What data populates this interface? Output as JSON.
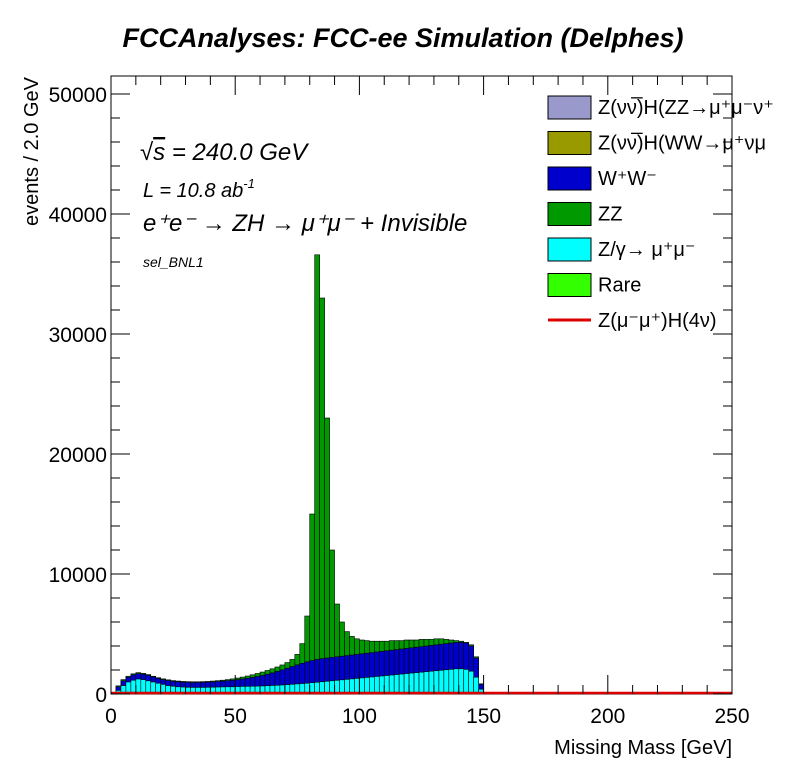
{
  "chart_data": {
    "type": "area",
    "title": "FCCAnalyses: FCC-ee Simulation (Delphes)",
    "xlabel": "Missing Mass [GeV]",
    "ylabel": "events / 2.0 GeV",
    "xlim": [
      0,
      250
    ],
    "ylim": [
      0,
      51500
    ],
    "x_ticks": [
      "0",
      "50",
      "100",
      "150",
      "200",
      "250"
    ],
    "y_ticks": [
      "0",
      "10000",
      "20000",
      "30000",
      "40000",
      "50000"
    ],
    "stacked": true,
    "bin_width": 2.0,
    "annotations": {
      "sqrt_s": "√s = 240.0 GeV",
      "sqrt_s_symbol": "√",
      "sqrt_s_var": "s",
      "sqrt_s_rest": " = 240.0 GeV",
      "lumi": "L = 10.8 ab",
      "lumi_exp": "-1",
      "process": "e⁺e⁻ → ZH → μ⁺μ⁻ + Invisible",
      "selection": "sel_BNL1"
    },
    "legend": [
      {
        "label": "Z(νν̅)H(ZZ→μ⁺μ⁻ν⁺",
        "color": "#9999cc",
        "style": "box"
      },
      {
        "label": "Z(νν̅)H(WW→μ⁺νμ",
        "color": "#999900",
        "style": "box"
      },
      {
        "label": "W⁺W⁻",
        "color": "#0000cc",
        "style": "box"
      },
      {
        "label": "ZZ",
        "color": "#009900",
        "style": "box"
      },
      {
        "label": "Z/γ→ μ⁺μ⁻",
        "color": "#00ffff",
        "style": "box"
      },
      {
        "label": "Rare",
        "color": "#33ff00",
        "style": "box"
      },
      {
        "label": "Z(μ⁻μ⁺)H(4ν)",
        "color": "#dd0000",
        "style": "line"
      }
    ],
    "x_bins_lower_edges": [
      0,
      2,
      4,
      6,
      8,
      10,
      12,
      14,
      16,
      18,
      20,
      22,
      24,
      26,
      28,
      30,
      32,
      34,
      36,
      38,
      40,
      42,
      44,
      46,
      48,
      50,
      52,
      54,
      56,
      58,
      60,
      62,
      64,
      66,
      68,
      70,
      72,
      74,
      76,
      78,
      80,
      82,
      84,
      86,
      88,
      90,
      92,
      94,
      96,
      98,
      100,
      102,
      104,
      106,
      108,
      110,
      112,
      114,
      116,
      118,
      120,
      122,
      124,
      126,
      128,
      130,
      132,
      134,
      136,
      138,
      140,
      142,
      144,
      146,
      148,
      150,
      152
    ],
    "series_stacked_totals": [
      {
        "name": "Z/γ→ μ⁺μ⁻",
        "values": [
          50,
          300,
          700,
          1000,
          1150,
          1250,
          1200,
          1100,
          1000,
          900,
          800,
          700,
          650,
          600,
          580,
          560,
          550,
          550,
          550,
          560,
          570,
          580,
          590,
          600,
          600,
          620,
          630,
          640,
          650,
          660,
          670,
          690,
          710,
          730,
          750,
          780,
          810,
          840,
          870,
          900,
          940,
          980,
          1020,
          1060,
          1100,
          1140,
          1180,
          1220,
          1260,
          1300,
          1340,
          1380,
          1420,
          1460,
          1500,
          1540,
          1580,
          1620,
          1660,
          1700,
          1740,
          1780,
          1820,
          1860,
          1900,
          1940,
          1980,
          2020,
          2060,
          2100,
          2100,
          2050,
          1900,
          1400,
          400,
          0,
          0
        ]
      },
      {
        "name": "W⁺W⁻",
        "values": [
          100,
          600,
          1100,
          1400,
          1600,
          1700,
          1650,
          1550,
          1420,
          1300,
          1200,
          1120,
          1060,
          1020,
          990,
          970,
          960,
          960,
          970,
          990,
          1010,
          1040,
          1070,
          1110,
          1150,
          1200,
          1250,
          1310,
          1380,
          1460,
          1550,
          1650,
          1760,
          1880,
          2010,
          2150,
          2290,
          2430,
          2560,
          2680,
          2790,
          2880,
          2950,
          3000,
          3050,
          3100,
          3150,
          3200,
          3250,
          3300,
          3350,
          3400,
          3450,
          3500,
          3550,
          3600,
          3650,
          3700,
          3750,
          3800,
          3850,
          3900,
          3950,
          4000,
          4050,
          4100,
          4150,
          4200,
          4250,
          4300,
          4300,
          4250,
          4000,
          3000,
          800,
          0,
          0
        ]
      },
      {
        "name": "ZZ",
        "values": [
          130,
          680,
          1200,
          1480,
          1680,
          1780,
          1720,
          1620,
          1480,
          1360,
          1260,
          1180,
          1120,
          1080,
          1050,
          1030,
          1020,
          1020,
          1030,
          1050,
          1080,
          1110,
          1150,
          1200,
          1260,
          1330,
          1410,
          1500,
          1600,
          1710,
          1830,
          1960,
          2100,
          2250,
          2420,
          2620,
          2880,
          3300,
          4200,
          6500,
          15000,
          36600,
          33000,
          23000,
          12000,
          7500,
          6000,
          5200,
          4800,
          4600,
          4500,
          4450,
          4400,
          4400,
          4400,
          4400,
          4450,
          4450,
          4450,
          4500,
          4500,
          4500,
          4550,
          4550,
          4550,
          4600,
          4600,
          4550,
          4500,
          4450,
          4400,
          4300,
          4100,
          3100,
          850,
          0,
          0
        ]
      },
      {
        "name": "Rare",
        "values": [
          0,
          0,
          0,
          0,
          0,
          0,
          0,
          0,
          0,
          0,
          0,
          0,
          0,
          0,
          0,
          0,
          0,
          0,
          0,
          0,
          0,
          0,
          0,
          0,
          0,
          0,
          0,
          0,
          0,
          0,
          0,
          0,
          0,
          0,
          0,
          0,
          0,
          0,
          0,
          0,
          0,
          0,
          0,
          0,
          0,
          0,
          0,
          0,
          0,
          0,
          0,
          0,
          0,
          0,
          0,
          0,
          0,
          0,
          0,
          0,
          0,
          0,
          0,
          0,
          0,
          0,
          0,
          0,
          0,
          0,
          0,
          0,
          0,
          0,
          0,
          0,
          0
        ]
      },
      {
        "name": "Z(νν̅)H(WW→μ⁺νμ",
        "values": [
          0,
          0,
          0,
          0,
          0,
          0,
          0,
          0,
          0,
          0,
          0,
          0,
          0,
          0,
          0,
          0,
          0,
          0,
          0,
          0,
          0,
          0,
          0,
          0,
          0,
          0,
          0,
          0,
          0,
          0,
          0,
          0,
          0,
          0,
          0,
          0,
          0,
          0,
          0,
          0,
          0,
          0,
          0,
          0,
          0,
          0,
          0,
          0,
          0,
          0,
          0,
          0,
          0,
          0,
          0,
          0,
          0,
          0,
          0,
          0,
          0,
          0,
          0,
          0,
          0,
          0,
          0,
          0,
          0,
          0,
          0,
          0,
          0,
          0,
          0,
          0,
          0
        ]
      },
      {
        "name": "Z(νν̅)H(ZZ→μ⁺μ⁻ν⁺",
        "values": [
          0,
          0,
          0,
          0,
          0,
          0,
          0,
          0,
          0,
          0,
          0,
          0,
          0,
          0,
          0,
          0,
          0,
          0,
          0,
          0,
          0,
          0,
          0,
          0,
          0,
          0,
          0,
          0,
          0,
          0,
          0,
          0,
          0,
          0,
          0,
          0,
          0,
          0,
          0,
          0,
          0,
          0,
          0,
          0,
          0,
          0,
          0,
          0,
          0,
          0,
          0,
          0,
          0,
          0,
          0,
          0,
          0,
          0,
          0,
          0,
          0,
          0,
          0,
          0,
          0,
          0,
          0,
          0,
          0,
          0,
          0,
          0,
          0,
          0,
          0,
          0,
          0
        ]
      }
    ],
    "signal_line": {
      "name": "Z(μ⁻μ⁺)H(4ν)",
      "color": "#dd0000",
      "approx_value": 0
    },
    "grid": false,
    "legend_position": "top-right"
  }
}
